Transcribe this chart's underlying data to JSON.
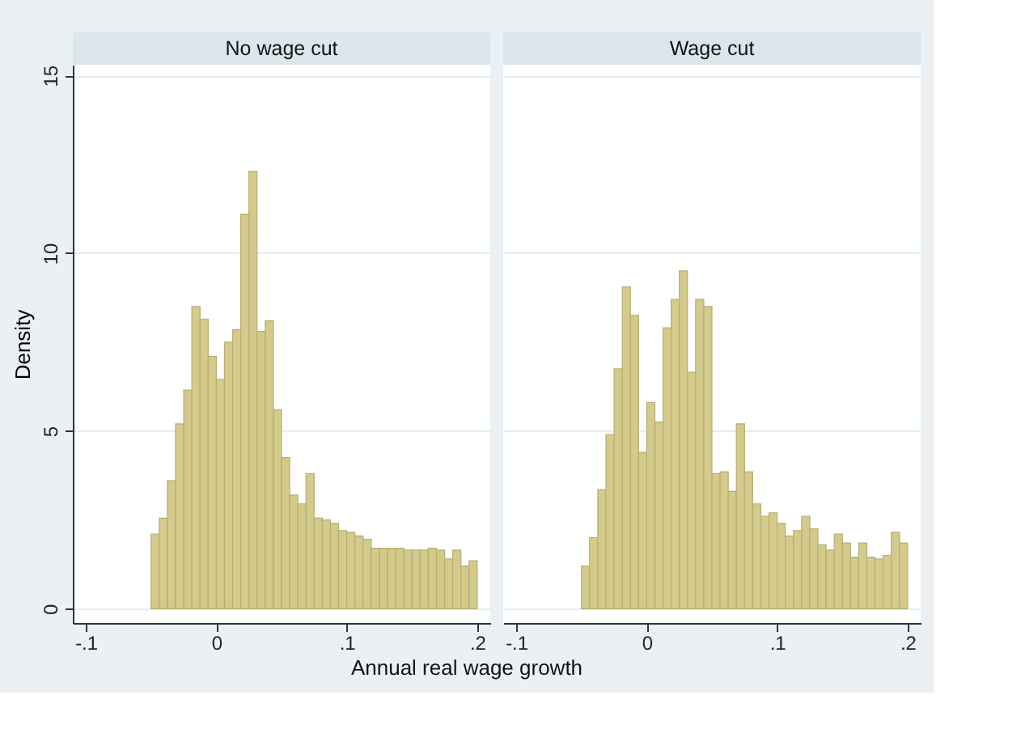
{
  "chart_data": [
    {
      "type": "histogram",
      "title": "No wage cut",
      "xlabel": "Annual real wage growth",
      "ylabel": "Density",
      "color": "#d3ca8c",
      "bins": [
        -0.05,
        -0.04375,
        -0.0375,
        -0.03125,
        -0.025,
        -0.01875,
        -0.0125,
        -0.00625,
        0,
        0.00625,
        0.0125,
        0.01875,
        0.025,
        0.03125,
        0.0375,
        0.04375,
        0.05,
        0.05625,
        0.0625,
        0.06875,
        0.075,
        0.08125,
        0.0875,
        0.09375,
        0.1,
        0.10625,
        0.1125,
        0.11875,
        0.125,
        0.13125,
        0.1375,
        0.14375,
        0.15,
        0.15625,
        0.1625,
        0.16875,
        0.175,
        0.18125,
        0.1875,
        0.19375,
        0.2
      ],
      "values": [
        2.1,
        2.55,
        3.6,
        5.2,
        6.15,
        8.5,
        8.15,
        7.1,
        6.45,
        7.5,
        7.85,
        11.1,
        12.3,
        7.8,
        8.1,
        5.6,
        4.25,
        3.2,
        2.95,
        3.8,
        2.55,
        2.5,
        2.4,
        2.2,
        2.15,
        2.05,
        1.95,
        1.7,
        1.7,
        1.7,
        1.7,
        1.65,
        1.65,
        1.65,
        1.7,
        1.65,
        1.4,
        1.65,
        1.2,
        1.35
      ],
      "xlim": [
        -0.11,
        0.21
      ],
      "xticks": [
        {
          "value": -0.1,
          "label": "-.1"
        },
        0,
        {
          "value": 0.1,
          "label": ".1"
        },
        {
          "value": 0.2,
          "label": ".2"
        }
      ],
      "ylim": [
        -0.4,
        15.3
      ],
      "yticks": [
        0,
        5,
        10,
        15
      ],
      "grid": "y"
    },
    {
      "type": "histogram",
      "title": "Wage cut",
      "color": "#d3ca8c",
      "bins": [
        -0.05,
        -0.04375,
        -0.0375,
        -0.03125,
        -0.025,
        -0.01875,
        -0.0125,
        -0.00625,
        0,
        0.00625,
        0.0125,
        0.01875,
        0.025,
        0.03125,
        0.0375,
        0.04375,
        0.05,
        0.05625,
        0.0625,
        0.06875,
        0.075,
        0.08125,
        0.0875,
        0.09375,
        0.1,
        0.10625,
        0.1125,
        0.11875,
        0.125,
        0.13125,
        0.1375,
        0.14375,
        0.15,
        0.15625,
        0.1625,
        0.16875,
        0.175,
        0.18125,
        0.1875,
        0.19375,
        0.2
      ],
      "values": [
        1.2,
        2.0,
        3.35,
        4.9,
        6.75,
        9.05,
        8.25,
        4.4,
        5.8,
        5.25,
        7.9,
        8.7,
        9.5,
        6.65,
        8.7,
        8.5,
        3.8,
        3.85,
        3.3,
        5.2,
        3.85,
        2.95,
        2.6,
        2.7,
        2.4,
        2.05,
        2.2,
        2.6,
        2.25,
        1.8,
        1.65,
        2.1,
        1.85,
        1.45,
        1.85,
        1.45,
        1.4,
        1.5,
        2.15,
        1.85
      ],
      "xlim": [
        -0.11,
        0.21
      ],
      "xticks": [
        {
          "value": -0.1,
          "label": "-.1"
        },
        0,
        {
          "value": 0.1,
          "label": ".1"
        },
        {
          "value": 0.2,
          "label": ".2"
        }
      ],
      "ylim": [
        -0.4,
        15.3
      ],
      "yticks": [
        0,
        5,
        10,
        15
      ],
      "grid": "y",
      "tick_labels": "x"
    }
  ]
}
